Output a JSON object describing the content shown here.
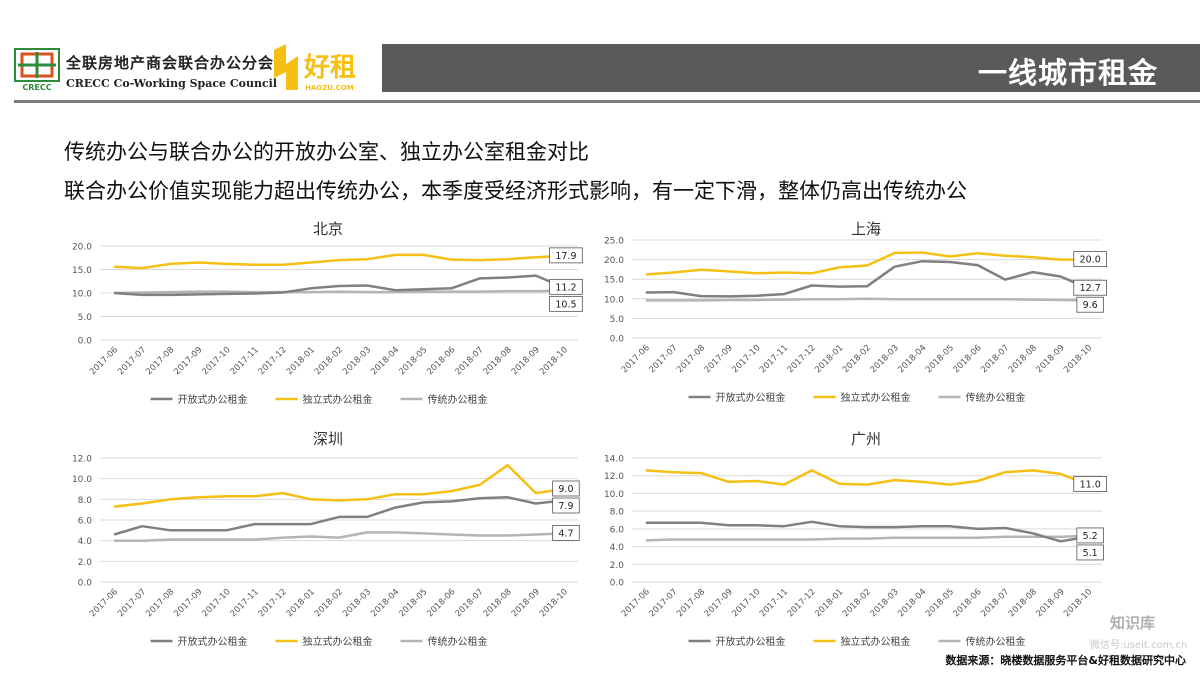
{
  "header": {
    "org_cn": "全联房地产商会联合办公分会",
    "org_en": "CRECC Co-Working Space Council",
    "logo1_text": "CRECC",
    "logo2_text": "好租",
    "logo2_sub": "HAOZU.COM",
    "page_title": "一线城市租金"
  },
  "subtitle1": "传统办公与联合办公的开放办公室、独立办公室租金对比",
  "subtitle2": "联合办公价值实现能力超出传统办公，本季度受经济形式影响，有一定下滑，整体仍高出传统办公",
  "source": "数据来源：晓楼数据服务平台&好租数据研究中心",
  "watermark": "知识库",
  "watermark2": "微信号:useit.com.cn",
  "colors": {
    "open": "#808080",
    "private": "#f5bf14",
    "traditional": "#b4b4b4"
  },
  "chart_data": [
    {
      "type": "line",
      "title": "北京",
      "categories": [
        "2017-06",
        "2017-07",
        "2017-08",
        "2017-09",
        "2017-10",
        "2017-11",
        "2017-12",
        "2018-01",
        "2018-02",
        "2018-03",
        "2018-04",
        "2018-05",
        "2018-06",
        "2018-07",
        "2018-08",
        "2018-09",
        "2018-10"
      ],
      "ylim": [
        0,
        20
      ],
      "yticks": [
        "0.0",
        "5.0",
        "10.0",
        "15.0",
        "20.0"
      ],
      "tick_values": [
        0,
        5,
        10,
        15,
        20
      ],
      "series": [
        {
          "name": "开放式办公租金",
          "key": "open",
          "values": [
            10.0,
            9.6,
            9.6,
            9.7,
            9.8,
            9.9,
            10.1,
            11.0,
            11.5,
            11.6,
            10.6,
            10.8,
            11.0,
            13.1,
            13.3,
            13.7,
            11.2
          ],
          "end_label": "11.2"
        },
        {
          "name": "独立式办公租金",
          "key": "private",
          "values": [
            15.6,
            15.3,
            16.2,
            16.5,
            16.2,
            16.0,
            16.0,
            16.5,
            17.0,
            17.2,
            18.1,
            18.1,
            17.1,
            17.0,
            17.2,
            17.6,
            17.9
          ],
          "end_label": "17.9"
        },
        {
          "name": "传统办公租金",
          "key": "traditional",
          "values": [
            10.0,
            10.1,
            10.2,
            10.3,
            10.3,
            10.2,
            10.2,
            10.2,
            10.3,
            10.2,
            10.2,
            10.3,
            10.3,
            10.3,
            10.4,
            10.4,
            10.5
          ],
          "end_label": "10.5"
        }
      ]
    },
    {
      "type": "line",
      "title": "上海",
      "categories": [
        "2017-06",
        "2017-07",
        "2017-08",
        "2017-09",
        "2017-10",
        "2017-11",
        "2017-12",
        "2018-01",
        "2018-02",
        "2018-03",
        "2018-04",
        "2018-05",
        "2018-06",
        "2018-07",
        "2018-08",
        "2018-09",
        "2018-10"
      ],
      "ylim": [
        0,
        25
      ],
      "yticks": [
        "0.0",
        "5.0",
        "10.0",
        "15.0",
        "20.0",
        "25.0"
      ],
      "tick_values": [
        0,
        5,
        10,
        15,
        20,
        25
      ],
      "series": [
        {
          "name": "开放式办公租金",
          "key": "open",
          "values": [
            11.6,
            11.7,
            10.7,
            10.6,
            10.8,
            11.2,
            13.4,
            13.1,
            13.2,
            18.2,
            19.6,
            19.4,
            18.6,
            14.9,
            16.8,
            15.7,
            12.7
          ],
          "end_label": "12.7"
        },
        {
          "name": "独立式办公租金",
          "key": "private",
          "values": [
            16.2,
            16.7,
            17.4,
            17.0,
            16.5,
            16.7,
            16.5,
            18.0,
            18.5,
            21.7,
            21.8,
            20.8,
            21.6,
            21.0,
            20.6,
            20.0,
            20.0
          ],
          "end_label": "20.0"
        },
        {
          "name": "传统办公租金",
          "key": "traditional",
          "values": [
            9.6,
            9.6,
            9.6,
            9.7,
            9.7,
            9.8,
            9.9,
            9.9,
            10.0,
            9.9,
            9.9,
            9.9,
            9.9,
            9.9,
            9.8,
            9.7,
            9.6
          ],
          "end_label": "9.6"
        }
      ]
    },
    {
      "type": "line",
      "title": "深圳",
      "categories": [
        "2017-06",
        "2017-07",
        "2017-08",
        "2017-09",
        "2017-10",
        "2017-11",
        "2017-12",
        "2018-01",
        "2018-02",
        "2018-03",
        "2018-04",
        "2018-05",
        "2018-06",
        "2018-07",
        "2018-08",
        "2018-09",
        "2018-10"
      ],
      "ylim": [
        0,
        12
      ],
      "yticks": [
        "0.0",
        "2.0",
        "4.0",
        "6.0",
        "8.0",
        "10.0",
        "12.0"
      ],
      "tick_values": [
        0,
        2,
        4,
        6,
        8,
        10,
        12
      ],
      "series": [
        {
          "name": "开放式办公租金",
          "key": "open",
          "values": [
            4.6,
            5.4,
            5.0,
            5.0,
            5.0,
            5.6,
            5.6,
            5.6,
            6.3,
            6.3,
            7.2,
            7.7,
            7.8,
            8.1,
            8.2,
            7.6,
            7.9
          ],
          "end_label": "7.9"
        },
        {
          "name": "独立式办公租金",
          "key": "private",
          "values": [
            7.3,
            7.6,
            8.0,
            8.2,
            8.3,
            8.3,
            8.6,
            8.0,
            7.9,
            8.0,
            8.5,
            8.5,
            8.8,
            9.4,
            11.3,
            8.6,
            9.0
          ],
          "end_label": "9.0"
        },
        {
          "name": "传统办公租金",
          "key": "traditional",
          "values": [
            4.0,
            4.0,
            4.1,
            4.1,
            4.1,
            4.1,
            4.3,
            4.4,
            4.3,
            4.8,
            4.8,
            4.7,
            4.6,
            4.5,
            4.5,
            4.6,
            4.7
          ],
          "end_label": "4.7"
        }
      ]
    },
    {
      "type": "line",
      "title": "广州",
      "categories": [
        "2017-06",
        "2017-07",
        "2017-08",
        "2017-09",
        "2017-10",
        "2017-11",
        "2017-12",
        "2018-01",
        "2018-02",
        "2018-03",
        "2018-04",
        "2018-05",
        "2018-06",
        "2018-07",
        "2018-08",
        "2018-09",
        "2018-10"
      ],
      "ylim": [
        0,
        14
      ],
      "yticks": [
        "0.0",
        "2.0",
        "4.0",
        "6.0",
        "8.0",
        "10.0",
        "12.0",
        "14.0"
      ],
      "tick_values": [
        0,
        2,
        4,
        6,
        8,
        10,
        12,
        14
      ],
      "series": [
        {
          "name": "开放式办公租金",
          "key": "open",
          "values": [
            6.7,
            6.7,
            6.7,
            6.4,
            6.4,
            6.3,
            6.8,
            6.3,
            6.2,
            6.2,
            6.3,
            6.3,
            6.0,
            6.1,
            5.5,
            4.6,
            5.1
          ],
          "end_label": "5.1"
        },
        {
          "name": "独立式办公租金",
          "key": "private",
          "values": [
            12.6,
            12.4,
            12.3,
            11.3,
            11.4,
            11.0,
            12.6,
            11.1,
            11.0,
            11.5,
            11.3,
            11.0,
            11.4,
            12.4,
            12.6,
            12.2,
            11.0
          ],
          "end_label": "11.0"
        },
        {
          "name": "传统办公租金",
          "key": "traditional",
          "values": [
            4.7,
            4.8,
            4.8,
            4.8,
            4.8,
            4.8,
            4.8,
            4.9,
            4.9,
            5.0,
            5.0,
            5.0,
            5.0,
            5.1,
            5.1,
            5.1,
            5.2
          ],
          "end_label": "5.2"
        }
      ]
    }
  ]
}
